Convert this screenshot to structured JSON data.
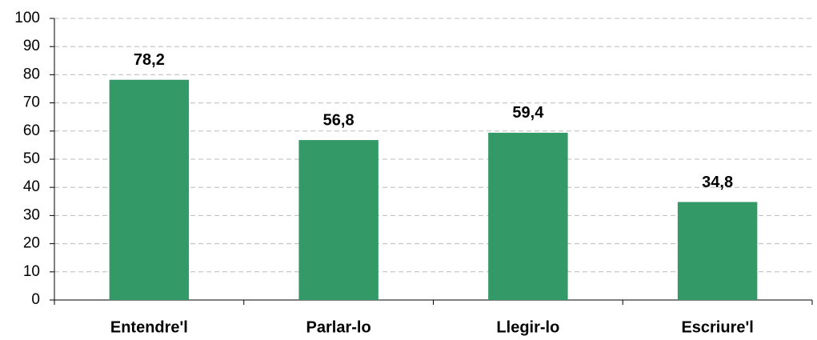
{
  "chart_data": {
    "type": "bar",
    "categories": [
      "Entendre'l",
      "Parlar-lo",
      "Llegir-lo",
      "Escriure'l"
    ],
    "values": [
      78.2,
      56.8,
      59.4,
      34.8
    ],
    "value_labels": [
      "78,2",
      "56,8",
      "59,4",
      "34,8"
    ],
    "color": "#339966",
    "ylim": [
      0,
      100
    ],
    "yticks": [
      0,
      10,
      20,
      30,
      40,
      50,
      60,
      70,
      80,
      90,
      100
    ],
    "grid": true
  }
}
